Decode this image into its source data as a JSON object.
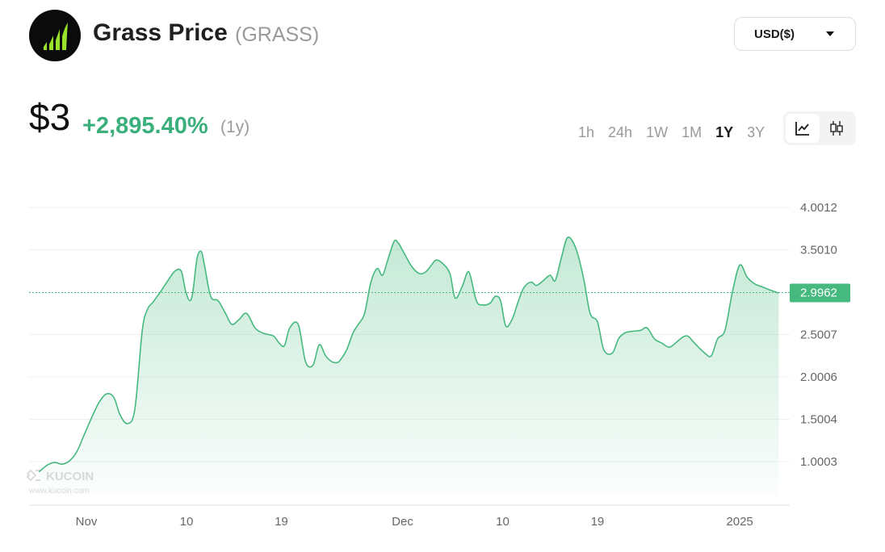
{
  "header": {
    "title": "Grass Price",
    "ticker": "(GRASS)",
    "currency": "USD($)"
  },
  "summary": {
    "price": "$3",
    "change": "+2,895.40%",
    "period": "(1y)"
  },
  "ranges": [
    {
      "label": "1h",
      "active": false
    },
    {
      "label": "24h",
      "active": false
    },
    {
      "label": "1W",
      "active": false
    },
    {
      "label": "1M",
      "active": false
    },
    {
      "label": "1Y",
      "active": true
    },
    {
      "label": "3Y",
      "active": false
    }
  ],
  "chart_type_options": [
    "line-chart-icon",
    "candlestick-icon"
  ],
  "watermark": {
    "brand": "KUCOIN",
    "url": "www.kucoin.com"
  },
  "colors": {
    "accent": "#3bb07c",
    "line": "#46b97f",
    "logo_bg": "#0b0b0b",
    "logo_mark": "#9be22d"
  },
  "chart_data": {
    "type": "area",
    "title": "",
    "xlabel": "",
    "ylabel": "",
    "ylim": [
      0.5,
      4.2
    ],
    "grid": true,
    "y_ticks": [
      "4.0012",
      "3.5010",
      "2.5007",
      "2.0006",
      "1.5004",
      "1.0003"
    ],
    "x_ticks": [
      "Nov",
      "10",
      "19",
      "Dec",
      "10",
      "19",
      "2025"
    ],
    "x_tick_days": [
      -0.5,
      9,
      18,
      29.5,
      39,
      48,
      61.5
    ],
    "current_value": "2.9962",
    "x": [
      -5.0,
      -4.2,
      -3.5,
      -2.8,
      -2.1,
      -1.4,
      -0.7,
      0.0,
      0.7,
      1.4,
      2.1,
      2.7,
      3.4,
      4.1,
      4.8,
      5.3,
      5.8,
      6.5,
      7.2,
      7.9,
      8.5,
      8.9,
      9.3,
      9.6,
      10.0,
      10.4,
      10.7,
      11.3,
      12.0,
      12.7,
      13.3,
      14.0,
      14.7,
      15.5,
      16.2,
      16.8,
      17.3,
      17.8,
      18.3,
      18.8,
      19.6,
      20.3,
      21.0,
      21.6,
      22.2,
      22.8,
      23.3,
      23.6,
      24.2,
      24.8,
      25.3,
      25.9,
      26.5,
      27.1,
      27.6,
      28.1,
      28.7,
      29.1,
      29.7,
      30.4,
      31.1,
      31.7,
      32.3,
      32.7,
      33.3,
      34.0,
      34.5,
      35.2,
      35.8,
      36.5,
      37.1,
      37.8,
      38.3,
      38.8,
      39.3,
      39.9,
      40.4,
      41.0,
      41.7,
      42.2,
      42.8,
      43.5,
      44.0,
      44.6,
      45.2,
      46.0,
      46.7,
      47.3,
      48.0,
      48.6,
      49.4,
      50.0,
      50.6,
      51.4,
      52.1,
      52.7,
      53.4,
      54.1,
      54.8,
      55.4,
      56.1,
      56.6,
      57.2,
      58.2,
      58.8,
      59.4,
      60.1,
      60.8,
      61.5,
      62.2,
      62.9,
      63.7,
      64.5,
      65.2
    ],
    "values": [
      0.88,
      0.96,
      0.99,
      0.97,
      1.01,
      1.12,
      1.32,
      1.52,
      1.7,
      1.8,
      1.76,
      1.55,
      1.45,
      1.62,
      2.55,
      2.8,
      2.88,
      3.0,
      3.13,
      3.25,
      3.25,
      3.02,
      2.9,
      3.0,
      3.4,
      3.48,
      3.32,
      2.95,
      2.9,
      2.75,
      2.62,
      2.68,
      2.75,
      2.58,
      2.52,
      2.5,
      2.48,
      2.4,
      2.37,
      2.58,
      2.62,
      2.18,
      2.14,
      2.38,
      2.25,
      2.18,
      2.17,
      2.2,
      2.32,
      2.52,
      2.62,
      2.75,
      3.12,
      3.28,
      3.2,
      3.38,
      3.6,
      3.58,
      3.45,
      3.3,
      3.22,
      3.24,
      3.33,
      3.38,
      3.34,
      3.22,
      2.93,
      3.08,
      3.24,
      2.9,
      2.85,
      2.87,
      2.95,
      2.9,
      2.6,
      2.68,
      2.86,
      3.05,
      3.12,
      3.08,
      3.13,
      3.2,
      3.14,
      3.42,
      3.65,
      3.5,
      3.15,
      2.75,
      2.65,
      2.32,
      2.28,
      2.45,
      2.52,
      2.54,
      2.55,
      2.58,
      2.45,
      2.4,
      2.35,
      2.4,
      2.47,
      2.48,
      2.4,
      2.28,
      2.25,
      2.45,
      2.55,
      3.0,
      3.32,
      3.18,
      3.1,
      3.06,
      3.02,
      2.99
    ]
  }
}
